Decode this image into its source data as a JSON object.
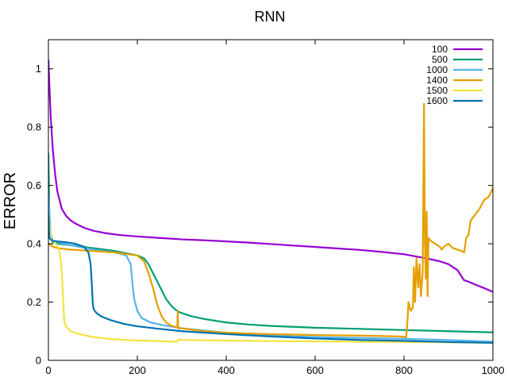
{
  "chart_data": {
    "type": "line",
    "title": "RNN",
    "xlabel": "",
    "ylabel": "ERROR",
    "xlim": [
      0,
      1000
    ],
    "ylim": [
      0,
      1.1
    ],
    "xticks": [
      0,
      200,
      400,
      600,
      800,
      1000
    ],
    "xtick_labels": [
      "0",
      "200",
      "400",
      "600",
      "800",
      "1000"
    ],
    "yticks": [
      0,
      0.2,
      0.4,
      0.6,
      0.8,
      1
    ],
    "ytick_labels": [
      "0",
      "0.2",
      "0.4",
      "0.6",
      "0.8",
      "1"
    ],
    "grid": false,
    "legend_position": "top-right",
    "series": [
      {
        "name": "100",
        "color": "#9400d3",
        "x": [
          0,
          2,
          5,
          10,
          15,
          20,
          30,
          40,
          50,
          60,
          80,
          100,
          130,
          160,
          200,
          250,
          300,
          350,
          400,
          450,
          500,
          550,
          600,
          650,
          700,
          750,
          800,
          850,
          880,
          900,
          920,
          935,
          945,
          960,
          980,
          1000
        ],
        "y": [
          1.03,
          0.95,
          0.84,
          0.72,
          0.64,
          0.58,
          0.52,
          0.495,
          0.48,
          0.47,
          0.455,
          0.445,
          0.436,
          0.43,
          0.425,
          0.42,
          0.415,
          0.412,
          0.408,
          0.404,
          0.399,
          0.394,
          0.389,
          0.384,
          0.379,
          0.372,
          0.364,
          0.35,
          0.34,
          0.33,
          0.31,
          0.275,
          0.27,
          0.26,
          0.248,
          0.235
        ]
      },
      {
        "name": "500",
        "color": "#009e73",
        "x": [
          0,
          2,
          5,
          10,
          20,
          50,
          100,
          150,
          200,
          215,
          225,
          235,
          245,
          255,
          265,
          275,
          285,
          295,
          320,
          350,
          400,
          450,
          500,
          600,
          700,
          800,
          900,
          1000
        ],
        "y": [
          0.71,
          0.5,
          0.42,
          0.405,
          0.4,
          0.395,
          0.385,
          0.375,
          0.36,
          0.35,
          0.33,
          0.3,
          0.27,
          0.24,
          0.21,
          0.19,
          0.175,
          0.165,
          0.152,
          0.142,
          0.13,
          0.123,
          0.118,
          0.112,
          0.108,
          0.104,
          0.1,
          0.096
        ]
      },
      {
        "name": "1000",
        "color": "#56b4e9",
        "x": [
          0,
          5,
          10,
          20,
          50,
          100,
          150,
          175,
          185,
          190,
          193,
          200,
          210,
          230,
          260,
          300,
          400,
          500,
          600,
          700,
          800,
          900,
          1000
        ],
        "y": [
          0.57,
          0.43,
          0.41,
          0.405,
          0.395,
          0.38,
          0.37,
          0.36,
          0.33,
          0.25,
          0.21,
          0.17,
          0.145,
          0.13,
          0.12,
          0.11,
          0.095,
          0.085,
          0.08,
          0.077,
          0.074,
          0.07,
          0.064
        ]
      },
      {
        "name": "1400",
        "color": "#e69f00",
        "x": [
          0,
          5,
          10,
          20,
          50,
          100,
          150,
          200,
          215,
          225,
          235,
          245,
          255,
          265,
          275,
          285,
          290,
          291,
          292,
          294,
          300,
          350,
          400,
          500,
          600,
          700,
          790,
          805,
          808,
          810,
          815,
          820,
          822,
          825,
          828,
          832,
          835,
          838,
          842,
          845,
          847,
          849,
          851,
          853,
          855,
          860,
          870,
          880,
          885,
          890,
          900,
          910,
          920,
          930,
          935,
          940,
          945,
          950,
          960,
          970,
          980,
          990,
          1000
        ],
        "y": [
          0.4,
          0.395,
          0.39,
          0.385,
          0.38,
          0.375,
          0.37,
          0.36,
          0.34,
          0.3,
          0.25,
          0.19,
          0.15,
          0.13,
          0.12,
          0.115,
          0.115,
          0.17,
          0.11,
          0.11,
          0.11,
          0.1,
          0.095,
          0.09,
          0.087,
          0.085,
          0.082,
          0.08,
          0.14,
          0.2,
          0.17,
          0.18,
          0.32,
          0.2,
          0.35,
          0.25,
          0.33,
          0.22,
          0.3,
          0.88,
          0.4,
          0.28,
          0.51,
          0.22,
          0.42,
          0.41,
          0.4,
          0.39,
          0.38,
          0.39,
          0.4,
          0.385,
          0.38,
          0.375,
          0.37,
          0.42,
          0.43,
          0.48,
          0.5,
          0.52,
          0.55,
          0.56,
          0.59
        ]
      },
      {
        "name": "1500",
        "color": "#f0e442",
        "x": [
          0,
          5,
          10,
          20,
          25,
          28,
          30,
          32,
          34,
          36,
          40,
          50,
          70,
          100,
          150,
          200,
          250,
          290,
          292,
          300,
          400,
          500,
          600,
          700,
          800,
          900,
          1000
        ],
        "y": [
          0.5,
          0.42,
          0.41,
          0.395,
          0.37,
          0.34,
          0.3,
          0.25,
          0.18,
          0.13,
          0.115,
          0.1,
          0.09,
          0.08,
          0.072,
          0.068,
          0.066,
          0.064,
          0.072,
          0.07,
          0.068,
          0.066,
          0.065,
          0.064,
          0.063,
          0.062,
          0.06
        ]
      },
      {
        "name": "1600",
        "color": "#0072b2",
        "x": [
          0,
          2,
          5,
          10,
          20,
          40,
          60,
          80,
          90,
          95,
          98,
          100,
          102,
          104,
          110,
          120,
          140,
          170,
          200,
          250,
          300,
          400,
          500,
          600,
          700,
          800,
          900,
          1000
        ],
        "y": [
          0.5,
          0.42,
          0.415,
          0.41,
          0.408,
          0.405,
          0.4,
          0.39,
          0.37,
          0.33,
          0.25,
          0.19,
          0.175,
          0.17,
          0.16,
          0.15,
          0.138,
          0.125,
          0.117,
          0.108,
          0.1,
          0.09,
          0.082,
          0.075,
          0.07,
          0.067,
          0.063,
          0.06
        ]
      }
    ]
  }
}
